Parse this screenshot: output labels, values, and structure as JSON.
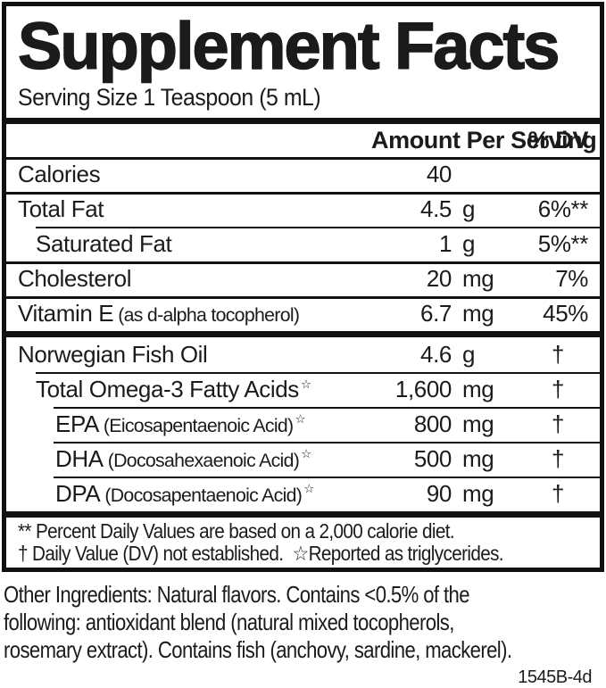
{
  "header": {
    "title": "Supplement Facts",
    "serving_size": "Serving Size 1 Teaspoon (5 mL)"
  },
  "table": {
    "amount_header": "Amount Per Serving",
    "dv_header": "% DV",
    "rows": [
      {
        "name": "Calories",
        "amount": "40",
        "unit": "",
        "dv": ""
      },
      {
        "name": "Total Fat",
        "amount": "4.5",
        "unit": "g",
        "dv": "6%**"
      },
      {
        "name": "Saturated Fat",
        "amount": "1",
        "unit": "g",
        "dv": "5%**"
      },
      {
        "name": "Cholesterol",
        "amount": "20",
        "unit": "mg",
        "dv": "7%"
      },
      {
        "name": "Vitamin E",
        "paren": "(as d-alpha tocopherol)",
        "amount": "6.7",
        "unit": "mg",
        "dv": "45%"
      },
      {
        "name": "Norwegian Fish Oil",
        "amount": "4.6",
        "unit": "g",
        "dv": "†"
      },
      {
        "name": "Total Omega-3 Fatty Acids",
        "mark": "☆",
        "amount": "1,600",
        "unit": "mg",
        "dv": "†"
      },
      {
        "name": "EPA",
        "paren": "(Eicosapentaenoic Acid)",
        "mark": "☆",
        "amount": "800",
        "unit": "mg",
        "dv": "†"
      },
      {
        "name": "DHA",
        "paren": "(Docosahexaenoic Acid)",
        "mark": "☆",
        "amount": "500",
        "unit": "mg",
        "dv": "†"
      },
      {
        "name": "DPA",
        "paren": "(Docosapentaenoic Acid)",
        "mark": "☆",
        "amount": "90",
        "unit": "mg",
        "dv": "†"
      }
    ],
    "footnotes": [
      "** Percent Daily Values are based on a 2,000 calorie diet.",
      "† Daily Value (DV) not established.  ☆Reported as triglycerides."
    ]
  },
  "other_ingredients": {
    "lines": [
      "Other Ingredients: Natural flavors. Contains <0.5% of the",
      "following: antioxidant blend (natural mixed tocopherols,",
      "rosemary extract). Contains fish (anchovy, sardine, mackerel)."
    ]
  },
  "product_code": "1545B-4d"
}
